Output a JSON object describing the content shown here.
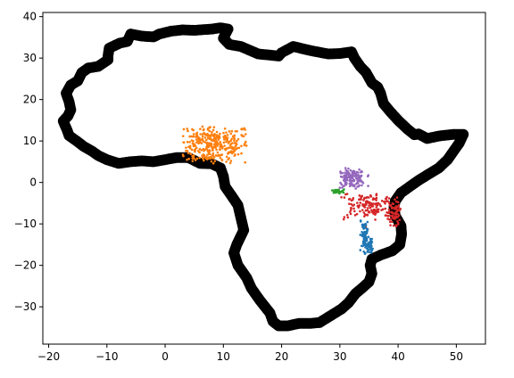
{
  "chart_data": {
    "type": "scatter",
    "title": "",
    "xlabel": "",
    "ylabel": "",
    "xlim": [
      -21,
      55
    ],
    "ylim": [
      -39,
      41
    ],
    "xticks": [
      -20,
      -10,
      0,
      10,
      20,
      30,
      40,
      50
    ],
    "yticks": [
      -30,
      -20,
      -10,
      0,
      10,
      20,
      30,
      40
    ],
    "grid": false,
    "legend": "none",
    "series": [
      {
        "kind": "outline",
        "color": "#000000",
        "points": [
          [
            -17.5,
            14.8
          ],
          [
            -16.8,
            12.5
          ],
          [
            -16.5,
            11.3
          ],
          [
            -15.2,
            10
          ],
          [
            -14,
            8.7
          ],
          [
            -12.5,
            7.5
          ],
          [
            -11.5,
            6.5
          ],
          [
            -10,
            5.5
          ],
          [
            -8,
            4.6
          ],
          [
            -6,
            5
          ],
          [
            -4,
            5.2
          ],
          [
            -2,
            5
          ],
          [
            0,
            5.5
          ],
          [
            2,
            6
          ],
          [
            4,
            6
          ],
          [
            6,
            4.6
          ],
          [
            8,
            4.5
          ],
          [
            9.5,
            3.5
          ],
          [
            10,
            1.5
          ],
          [
            10.3,
            -1
          ],
          [
            11.3,
            -3
          ],
          [
            12.5,
            -5.5
          ],
          [
            13,
            -8.5
          ],
          [
            13.5,
            -11.5
          ],
          [
            12.3,
            -15
          ],
          [
            11.8,
            -17
          ],
          [
            12.5,
            -20
          ],
          [
            14,
            -23
          ],
          [
            14.8,
            -25.5
          ],
          [
            16.3,
            -28.5
          ],
          [
            18,
            -31.5
          ],
          [
            18.5,
            -33.5
          ],
          [
            19.5,
            -34.6
          ],
          [
            21,
            -34.6
          ],
          [
            23,
            -34
          ],
          [
            25,
            -34
          ],
          [
            26.5,
            -33.8
          ],
          [
            28,
            -32.5
          ],
          [
            30.3,
            -30.5
          ],
          [
            31.5,
            -29
          ],
          [
            32.7,
            -26.8
          ],
          [
            33.8,
            -25.5
          ],
          [
            35,
            -24
          ],
          [
            35.5,
            -22
          ],
          [
            35.2,
            -20
          ],
          [
            35.5,
            -18.5
          ],
          [
            37,
            -17.5
          ],
          [
            39,
            -16.5
          ],
          [
            40.3,
            -15
          ],
          [
            40.6,
            -12.5
          ],
          [
            40.5,
            -10.5
          ],
          [
            39.5,
            -8
          ],
          [
            39.3,
            -6
          ],
          [
            39.5,
            -4.5
          ],
          [
            40.5,
            -2.5
          ],
          [
            42,
            -1
          ],
          [
            43.5,
            0.5
          ],
          [
            45,
            1.8
          ],
          [
            47,
            3.5
          ],
          [
            48.5,
            5.5
          ],
          [
            49.5,
            7.5
          ],
          [
            50.5,
            9.5
          ],
          [
            51.2,
            11.6
          ],
          [
            49.5,
            11.6
          ],
          [
            47,
            11.2
          ],
          [
            45,
            10.6
          ],
          [
            43.5,
            11.7
          ],
          [
            42.8,
            11.5
          ],
          [
            41.5,
            13
          ],
          [
            40,
            15
          ],
          [
            38.7,
            17
          ],
          [
            37.5,
            19
          ],
          [
            37,
            21.5
          ],
          [
            36.5,
            23
          ],
          [
            35.5,
            24
          ],
          [
            34.5,
            26.5
          ],
          [
            33.5,
            28
          ],
          [
            32.5,
            30
          ],
          [
            32,
            31.5
          ],
          [
            30,
            31.1
          ],
          [
            28,
            31
          ],
          [
            25,
            31.8
          ],
          [
            22,
            32.8
          ],
          [
            20,
            31.3
          ],
          [
            19.5,
            30.5
          ],
          [
            16,
            31
          ],
          [
            13,
            32.8
          ],
          [
            11,
            33.3
          ],
          [
            10,
            34.8
          ],
          [
            10.8,
            37
          ],
          [
            9.5,
            37.3
          ],
          [
            8,
            37
          ],
          [
            5,
            36.7
          ],
          [
            3,
            36.8
          ],
          [
            1,
            36.5
          ],
          [
            -1,
            35.8
          ],
          [
            -2,
            35.1
          ],
          [
            -4,
            35.3
          ],
          [
            -5.9,
            35.8
          ],
          [
            -6.5,
            34
          ],
          [
            -7.8,
            33.6
          ],
          [
            -9.6,
            32.4
          ],
          [
            -9.8,
            30.6
          ],
          [
            -9.8,
            29.6
          ],
          [
            -11.5,
            28
          ],
          [
            -13.2,
            27.6
          ],
          [
            -14.3,
            26.5
          ],
          [
            -15,
            24.5
          ],
          [
            -16.2,
            23.5
          ],
          [
            -17,
            21.5
          ],
          [
            -16.5,
            19.5
          ],
          [
            -16.2,
            17.5
          ],
          [
            -16.7,
            16
          ],
          [
            -17.5,
            14.8
          ]
        ]
      },
      {
        "kind": "cluster",
        "color": "#ff7f0e",
        "center": [
          8,
          9
        ],
        "spread": [
          3.5,
          2.6
        ],
        "bounds": [
          3,
          14,
          4.5,
          13.5
        ],
        "count": 330
      },
      {
        "kind": "cluster",
        "color": "#9467bd",
        "center": [
          32,
          1
        ],
        "spread": [
          1.2,
          1.1
        ],
        "bounds": [
          30,
          35,
          -1.5,
          3.5
        ],
        "count": 150
      },
      {
        "kind": "cluster",
        "color": "#2ca02c",
        "center": [
          29.5,
          -2.2
        ],
        "spread": [
          0.6,
          0.25
        ],
        "bounds": [
          28.5,
          31,
          -3,
          -1.6
        ],
        "count": 35
      },
      {
        "kind": "cluster",
        "color": "#d62728",
        "center": [
          35,
          -5.5
        ],
        "spread": [
          3,
          1.8
        ],
        "bounds": [
          30,
          40.5,
          -11,
          -2.5
        ],
        "count": 160
      },
      {
        "kind": "cluster",
        "color": "#d62728",
        "center": [
          39.3,
          -8
        ],
        "spread": [
          0.5,
          1.6
        ],
        "bounds": [
          38,
          40.5,
          -11,
          -4
        ],
        "count": 50
      },
      {
        "kind": "cluster",
        "color": "#1f77b4",
        "center": [
          34.3,
          -13
        ],
        "spread": [
          0.35,
          2.6
        ],
        "bounds": [
          33.5,
          35.3,
          -17.5,
          -9
        ],
        "count": 80
      },
      {
        "kind": "cluster",
        "color": "#1f77b4",
        "center": [
          35.2,
          -15.3
        ],
        "spread": [
          0.3,
          1
        ],
        "bounds": [
          34.5,
          36,
          -17,
          -13.5
        ],
        "count": 30
      }
    ]
  }
}
